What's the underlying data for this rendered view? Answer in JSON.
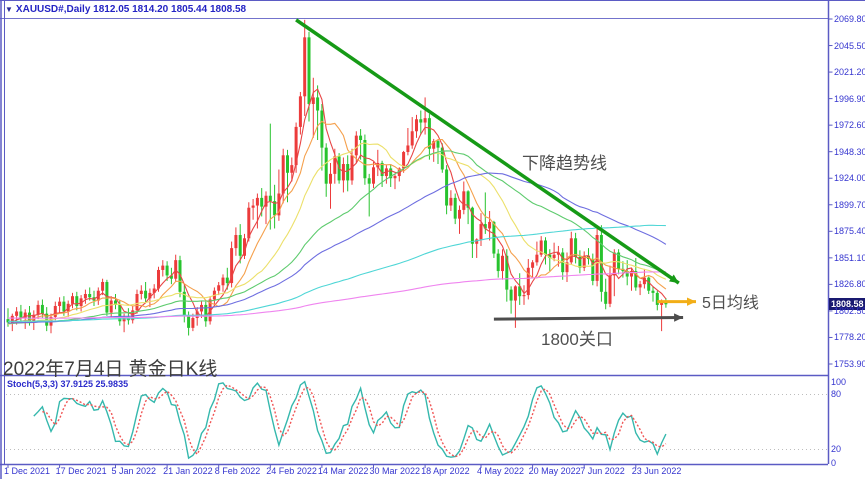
{
  "window": {
    "title_icon": "▼",
    "title": "XAUUSD#,Daily  1812.05 1814.20 1805.44 1808.58"
  },
  "colors": {
    "frame": "#5b5bc4",
    "axis_text": "#3535cf",
    "bull": "#ec3b3b",
    "bear": "#27c32e",
    "trend_line": "#169a16",
    "ma5_arrow": "#f2ae17",
    "level_arrow": "#4d4d4d",
    "stoch_k": "#35b8ad",
    "stoch_d": "#f05555",
    "stoch_level": "#bdbdbd",
    "price_tag_bg": "#191970"
  },
  "price_axis": {
    "labels": [
      "2069.80",
      "2045.50",
      "2021.20",
      "1996.90",
      "1972.60",
      "1948.30",
      "1924.00",
      "1899.70",
      "1875.40",
      "1851.10",
      "1826.80",
      "1802.50",
      "1778.20",
      "1753.90"
    ],
    "current": "1808.58"
  },
  "stoch_axis": {
    "labels": [
      "100",
      "80",
      "20",
      "0"
    ]
  },
  "time_axis": [
    "1 Dec 2021",
    "17 Dec 2021",
    "5 Jan 2022",
    "21 Jan 2022",
    "8 Feb 2022",
    "24 Feb 2022",
    "14 Mar 2022",
    "30 Mar 2022",
    "18 Apr 2022",
    "4 May 2022",
    "20 May 2022",
    "7 Jun 2022",
    "23 Jun 2022"
  ],
  "indicator": {
    "label": "Stoch(5,3,3) 37.9125 25.9835"
  },
  "annotations": {
    "trendline": "下降趋势线",
    "ma5": "5日均线",
    "level": "1800关口",
    "caption": "2022年7月4日 黄金日K线"
  },
  "chart_data": {
    "type": "candlestick",
    "symbol": "XAUUSD#",
    "timeframe": "Daily",
    "current_ohlc": {
      "open": 1812.05,
      "high": 1814.2,
      "low": 1805.44,
      "close": 1808.58
    },
    "ylim": [
      1753.9,
      2069.8
    ],
    "price_step": 24.3,
    "grid": false,
    "bars": [
      [
        1795,
        1805,
        1788,
        1792
      ],
      [
        1792,
        1800,
        1784,
        1798
      ],
      [
        1798,
        1806,
        1790,
        1802
      ],
      [
        1802,
        1808,
        1792,
        1796
      ],
      [
        1796,
        1804,
        1786,
        1801
      ],
      [
        1801,
        1807,
        1789,
        1793
      ],
      [
        1793,
        1803,
        1785,
        1799
      ],
      [
        1799,
        1812,
        1795,
        1808
      ],
      [
        1808,
        1813,
        1796,
        1800
      ],
      [
        1800,
        1806,
        1784,
        1789
      ],
      [
        1789,
        1800,
        1782,
        1797
      ],
      [
        1797,
        1811,
        1794,
        1807
      ],
      [
        1807,
        1815,
        1801,
        1811
      ],
      [
        1811,
        1816,
        1798,
        1802
      ],
      [
        1802,
        1812,
        1797,
        1809
      ],
      [
        1809,
        1819,
        1805,
        1816
      ],
      [
        1816,
        1820,
        1803,
        1807
      ],
      [
        1807,
        1817,
        1802,
        1814
      ],
      [
        1814,
        1822,
        1809,
        1818
      ],
      [
        1818,
        1824,
        1812,
        1815
      ],
      [
        1815,
        1821,
        1807,
        1812
      ],
      [
        1812,
        1824,
        1808,
        1821
      ],
      [
        1821,
        1832,
        1817,
        1829
      ],
      [
        1829,
        1831,
        1798,
        1801
      ],
      [
        1801,
        1816,
        1796,
        1812
      ],
      [
        1812,
        1818,
        1804,
        1808
      ],
      [
        1808,
        1812,
        1789,
        1793
      ],
      [
        1793,
        1800,
        1783,
        1797
      ],
      [
        1797,
        1805,
        1790,
        1794
      ],
      [
        1794,
        1807,
        1791,
        1803
      ],
      [
        1803,
        1822,
        1800,
        1818
      ],
      [
        1818,
        1826,
        1813,
        1821
      ],
      [
        1821,
        1829,
        1810,
        1814
      ],
      [
        1814,
        1823,
        1806,
        1819
      ],
      [
        1819,
        1827,
        1814,
        1823
      ],
      [
        1823,
        1843,
        1820,
        1840
      ],
      [
        1840,
        1849,
        1834,
        1844
      ],
      [
        1844,
        1848,
        1830,
        1835
      ],
      [
        1835,
        1842,
        1827,
        1832
      ],
      [
        1832,
        1854,
        1829,
        1849
      ],
      [
        1849,
        1853,
        1815,
        1820
      ],
      [
        1820,
        1826,
        1792,
        1798
      ],
      [
        1798,
        1802,
        1780,
        1787
      ],
      [
        1787,
        1800,
        1784,
        1796
      ],
      [
        1796,
        1806,
        1789,
        1802
      ],
      [
        1802,
        1812,
        1796,
        1808
      ],
      [
        1808,
        1811,
        1788,
        1793
      ],
      [
        1793,
        1816,
        1790,
        1813
      ],
      [
        1813,
        1824,
        1808,
        1821
      ],
      [
        1821,
        1829,
        1817,
        1826
      ],
      [
        1826,
        1836,
        1820,
        1833
      ],
      [
        1833,
        1842,
        1822,
        1828
      ],
      [
        1828,
        1866,
        1824,
        1860
      ],
      [
        1860,
        1879,
        1853,
        1872
      ],
      [
        1872,
        1882,
        1846,
        1853
      ],
      [
        1853,
        1873,
        1850,
        1869
      ],
      [
        1869,
        1902,
        1866,
        1897
      ],
      [
        1897,
        1905,
        1886,
        1899
      ],
      [
        1899,
        1910,
        1878,
        1906
      ],
      [
        1906,
        1915,
        1889,
        1898
      ],
      [
        1898,
        1912,
        1882,
        1908
      ],
      [
        1908,
        1974,
        1877,
        1903
      ],
      [
        1903,
        1918,
        1878,
        1890
      ],
      [
        1890,
        1932,
        1885,
        1910
      ],
      [
        1910,
        1951,
        1901,
        1945
      ],
      [
        1945,
        1950,
        1902,
        1929
      ],
      [
        1929,
        1943,
        1921,
        1936
      ],
      [
        1936,
        1975,
        1929,
        1971
      ],
      [
        1971,
        2003,
        1964,
        1999
      ],
      [
        1999,
        2069,
        1981,
        2053
      ],
      [
        2053,
        2058,
        1976,
        1992
      ],
      [
        1992,
        2016,
        1961,
        1998
      ],
      [
        1998,
        2009,
        1959,
        1986
      ],
      [
        1986,
        1992,
        1931,
        1952
      ],
      [
        1952,
        1956,
        1907,
        1919
      ],
      [
        1919,
        1938,
        1896,
        1928
      ],
      [
        1928,
        1951,
        1919,
        1944
      ],
      [
        1944,
        1947,
        1919,
        1922
      ],
      [
        1922,
        1943,
        1911,
        1937
      ],
      [
        1937,
        1945,
        1912,
        1922
      ],
      [
        1922,
        1951,
        1918,
        1945
      ],
      [
        1945,
        1967,
        1938,
        1963
      ],
      [
        1963,
        1969,
        1941,
        1959
      ],
      [
        1959,
        1964,
        1918,
        1924
      ],
      [
        1924,
        1928,
        1889,
        1919
      ],
      [
        1919,
        1939,
        1915,
        1934
      ],
      [
        1934,
        1950,
        1926,
        1938
      ],
      [
        1938,
        1940,
        1916,
        1926
      ],
      [
        1926,
        1936,
        1919,
        1933
      ],
      [
        1933,
        1937,
        1916,
        1924
      ],
      [
        1924,
        1928,
        1914,
        1926
      ],
      [
        1926,
        1934,
        1921,
        1933
      ],
      [
        1933,
        1949,
        1929,
        1948
      ],
      [
        1948,
        1970,
        1945,
        1954
      ],
      [
        1954,
        1980,
        1951,
        1967
      ],
      [
        1967,
        1982,
        1961,
        1978
      ],
      [
        1978,
        1986,
        1964,
        1975
      ],
      [
        1975,
        1998,
        1964,
        1979
      ],
      [
        1979,
        1983,
        1941,
        1951
      ],
      [
        1951,
        1960,
        1939,
        1958
      ],
      [
        1958,
        1959,
        1937,
        1952
      ],
      [
        1952,
        1956,
        1929,
        1932
      ],
      [
        1932,
        1936,
        1891,
        1899
      ],
      [
        1899,
        1913,
        1894,
        1906
      ],
      [
        1906,
        1910,
        1882,
        1887
      ],
      [
        1887,
        1899,
        1873,
        1895
      ],
      [
        1895,
        1921,
        1891,
        1912
      ],
      [
        1912,
        1913,
        1882,
        1897
      ],
      [
        1897,
        1898,
        1851,
        1864
      ],
      [
        1864,
        1869,
        1851,
        1868
      ],
      [
        1868,
        1892,
        1862,
        1882
      ],
      [
        1882,
        1911,
        1873,
        1878
      ],
      [
        1878,
        1894,
        1867,
        1884
      ],
      [
        1884,
        1885,
        1851,
        1855
      ],
      [
        1855,
        1859,
        1833,
        1839
      ],
      [
        1839,
        1859,
        1831,
        1853
      ],
      [
        1853,
        1859,
        1811,
        1822
      ],
      [
        1822,
        1825,
        1800,
        1812
      ],
      [
        1812,
        1826,
        1787,
        1825
      ],
      [
        1825,
        1837,
        1808,
        1816
      ],
      [
        1816,
        1826,
        1808,
        1817
      ],
      [
        1817,
        1850,
        1813,
        1842
      ],
      [
        1842,
        1849,
        1833,
        1847
      ],
      [
        1847,
        1866,
        1844,
        1854
      ],
      [
        1854,
        1871,
        1852,
        1867
      ],
      [
        1867,
        1870,
        1845,
        1854
      ],
      [
        1854,
        1859,
        1839,
        1851
      ],
      [
        1851,
        1865,
        1848,
        1854
      ],
      [
        1854,
        1862,
        1843,
        1856
      ],
      [
        1856,
        1860,
        1831,
        1838
      ],
      [
        1838,
        1856,
        1829,
        1847
      ],
      [
        1847,
        1875,
        1845,
        1869
      ],
      [
        1869,
        1874,
        1846,
        1852
      ],
      [
        1852,
        1858,
        1837,
        1842
      ],
      [
        1842,
        1857,
        1839,
        1853
      ],
      [
        1853,
        1860,
        1845,
        1850
      ],
      [
        1850,
        1855,
        1826,
        1830
      ],
      [
        1830,
        1878,
        1825,
        1872
      ],
      [
        1872,
        1881,
        1811,
        1820
      ],
      [
        1820,
        1832,
        1804,
        1809
      ],
      [
        1809,
        1844,
        1806,
        1835
      ],
      [
        1835,
        1859,
        1816,
        1856
      ],
      [
        1856,
        1859,
        1836,
        1841
      ],
      [
        1841,
        1848,
        1833,
        1839
      ],
      [
        1839,
        1849,
        1826,
        1834
      ],
      [
        1834,
        1842,
        1821,
        1839
      ],
      [
        1839,
        1851,
        1821,
        1824
      ],
      [
        1824,
        1830,
        1817,
        1827
      ],
      [
        1827,
        1841,
        1823,
        1833
      ],
      [
        1833,
        1834,
        1818,
        1821
      ],
      [
        1821,
        1825,
        1811,
        1819
      ],
      [
        1819,
        1821,
        1803,
        1808
      ],
      [
        1808,
        1813,
        1784,
        1811.5
      ],
      [
        1812.05,
        1814.2,
        1805.44,
        1808.58
      ]
    ],
    "tick_indices": [
      0,
      12,
      25,
      37,
      49,
      61,
      73,
      85,
      97,
      110,
      122,
      134,
      146
    ],
    "moving_averages": [
      {
        "period": 5,
        "color": "#e84545"
      },
      {
        "period": 10,
        "color": "#f5a04c"
      },
      {
        "period": 20,
        "color": "#ece06a"
      },
      {
        "period": 40,
        "color": "#5ecb6e"
      },
      {
        "period": 60,
        "color": "#6e6ee0"
      },
      {
        "period": 120,
        "color": "#4fd6d6"
      },
      {
        "period": 240,
        "color": "#ef85ef"
      }
    ],
    "ma_seed": {
      "from": 1802,
      "to": 1790,
      "count": 240
    },
    "stochastic": {
      "params": "5,3,3",
      "current_k": 37.9125,
      "current_d": 25.9835,
      "levels": [
        20,
        80
      ],
      "range": [
        0,
        100
      ]
    },
    "annotations_geometry": {
      "trend": {
        "from_bar": 67,
        "from_price": 2069,
        "to_bar": 156,
        "to_price": 1828
      },
      "ma5": {
        "from_bar": 151,
        "from_price": 1811,
        "to_bar": 160,
        "to_price": 1811
      },
      "level": {
        "from_bar": 113,
        "from_price": 1795,
        "to_bar": 157,
        "to_price": 1796.5
      }
    }
  }
}
